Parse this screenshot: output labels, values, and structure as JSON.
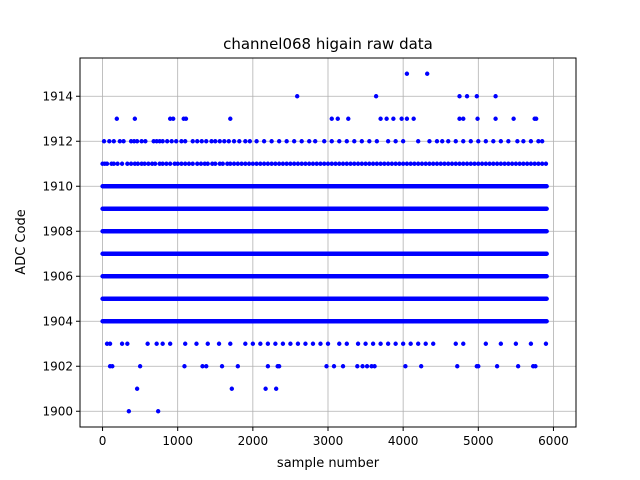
{
  "chart_data": {
    "type": "scatter",
    "title": "channel068 higain raw data",
    "xlabel": "sample number",
    "ylabel": "ADC Code",
    "xlim": [
      -300,
      6300
    ],
    "ylim": [
      1899.3,
      1915.7
    ],
    "xticks": [
      0,
      1000,
      2000,
      3000,
      4000,
      5000,
      6000
    ],
    "yticks": [
      1900,
      1902,
      1904,
      1906,
      1908,
      1910,
      1912,
      1914
    ],
    "grid": true,
    "marker_color": "#0000ff",
    "series": [
      {
        "values_dense_levels": [
          1904,
          1905,
          1906,
          1907,
          1908,
          1909,
          1910
        ],
        "x_range": [
          0,
          5919
        ],
        "levels": [
          {
            "y": 1911,
            "x": [
              0,
              30,
              60,
              120,
              150,
              200,
              260,
              330,
              380,
              430,
              470,
              520,
              560,
              610,
              660,
              700,
              760,
              800,
              850,
              900,
              960,
              1000,
              1050,
              1100,
              1150,
              1200,
              1260,
              1310,
              1360,
              1400,
              1460,
              1500,
              1560,
              1600,
              1660,
              1700,
              1750,
              1800,
              1850,
              1900,
              1950,
              2000,
              2050,
              2100,
              2150,
              2200,
              2250,
              2300,
              2350,
              2400,
              2450,
              2500,
              2550,
              2600,
              2650,
              2700,
              2750,
              2800,
              2850,
              2900,
              2950,
              3000,
              3050,
              3100,
              3150,
              3200,
              3250,
              3300,
              3350,
              3400,
              3450,
              3500,
              3550,
              3600,
              3650,
              3700,
              3750,
              3800,
              3850,
              3900,
              3950,
              4000,
              4050,
              4100,
              4150,
              4200,
              4250,
              4300,
              4350,
              4400,
              4450,
              4500,
              4550,
              4600,
              4650,
              4700,
              4750,
              4800,
              4850,
              4900,
              4950,
              5000,
              5050,
              5100,
              5150,
              5200,
              5250,
              5300,
              5350,
              5400,
              5450,
              5500,
              5550,
              5600,
              5650,
              5700,
              5750,
              5800,
              5850,
              5900
            ]
          },
          {
            "y": 1912,
            "x": [
              20,
              90,
              150,
              230,
              280,
              380,
              420,
              460,
              520,
              570,
              680,
              720,
              760,
              800,
              860,
              920,
              980,
              1050,
              1100,
              1200,
              1260,
              1320,
              1380,
              1450,
              1500,
              1560,
              1620,
              1680,
              1750,
              1820,
              1900,
              1960,
              2050,
              2150,
              2250,
              2350,
              2450,
              2550,
              2650,
              2750,
              2830,
              2950,
              3050,
              3150,
              3250,
              3350,
              3450,
              3550,
              3650,
              3800,
              3900,
              4000,
              4200,
              4350,
              4450,
              4520,
              4600,
              4700,
              4800,
              4900,
              5000,
              5100,
              5200,
              5300,
              5400,
              5520,
              5600,
              5700,
              5800,
              5850
            ]
          },
          {
            "y": 1913,
            "x": [
              190,
              430,
              900,
              940,
              1080,
              1110,
              1700,
              3050,
              3130,
              3270,
              3700,
              3780,
              3870,
              3980,
              4050,
              4140,
              4750,
              4800,
              4990,
              5230,
              5470,
              5750,
              5770
            ]
          },
          {
            "y": 1914,
            "x": [
              2590,
              3640,
              4750,
              4850,
              4980,
              5230
            ]
          },
          {
            "y": 1915,
            "x": [
              4050,
              4320
            ]
          },
          {
            "y": 1903,
            "x": [
              60,
              100,
              260,
              330,
              600,
              720,
              800,
              900,
              1100,
              1250,
              1400,
              1550,
              1700,
              1900,
              2000,
              2100,
              2200,
              2300,
              2400,
              2500,
              2600,
              2700,
              2800,
              2900,
              3000,
              3150,
              3250,
              3400,
              3500,
              3600,
              3700,
              3800,
              3900,
              4000,
              4100,
              4200,
              4300,
              4400,
              4700,
              4800,
              5100,
              5300,
              5500,
              5700,
              5900
            ]
          },
          {
            "y": 1902,
            "x": [
              100,
              130,
              500,
              1090,
              1330,
              1380,
              1590,
              1800,
              2200,
              2330,
              2350,
              2980,
              3080,
              3200,
              3390,
              3460,
              3520,
              3580,
              3620,
              4030,
              4240,
              4720,
              4980,
              5000,
              5250,
              5530,
              5730,
              5760
            ]
          },
          {
            "y": 1901,
            "x": [
              460,
              1720,
              2170,
              2310
            ]
          },
          {
            "y": 1900,
            "x": [
              350,
              740
            ]
          }
        ]
      }
    ]
  }
}
